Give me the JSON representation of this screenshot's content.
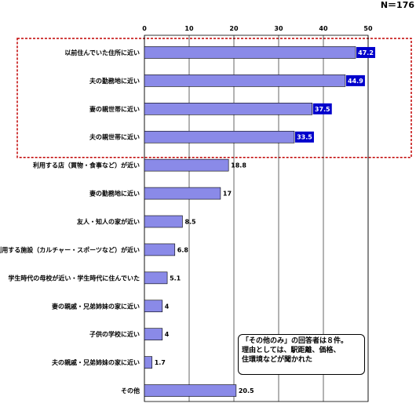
{
  "sample_size": "N＝176",
  "callout": {
    "line1": "「その他のみ」の回答者は８件。",
    "line2": "理由としては、駅距離、価格、",
    "line3": "住環境などが聞かれた"
  },
  "colors": {
    "bar": "#8a8ae8",
    "highlight_box": "#0000cc",
    "dotted_frame": "#c00000"
  },
  "chart_data": {
    "type": "bar",
    "orientation": "horizontal",
    "xlim": [
      0,
      50
    ],
    "xticks": [
      0,
      10,
      20,
      30,
      40,
      50
    ],
    "grid": true,
    "categories": [
      "以前住んでいた住所に近い",
      "夫の勤務地に近い",
      "妻の親世帯に近い",
      "夫の親世帯に近い",
      "利用する店（買物・食事など）が近い",
      "妻の勤務地に近い",
      "友人・知人の家が近い",
      "利用する施設（カルチャー・スポーツなど）が近い",
      "学生時代の母校が近い・学生時代に住んでいた",
      "妻の親戚・兄弟姉妹の家に近い",
      "子供の学校に近い",
      "夫の親戚・兄弟姉妹の家に近い",
      "その他"
    ],
    "values": [
      47.2,
      44.9,
      37.5,
      33.5,
      18.8,
      17,
      8.5,
      6.8,
      5.1,
      4,
      4,
      1.7,
      20.5
    ],
    "value_labels": [
      "47.2",
      "44.9",
      "37.5",
      "33.5",
      "18.8",
      "17",
      "8.5",
      "6.8",
      "5.1",
      "4",
      "4",
      "1.7",
      "20.5"
    ],
    "highlighted_count": 4
  }
}
